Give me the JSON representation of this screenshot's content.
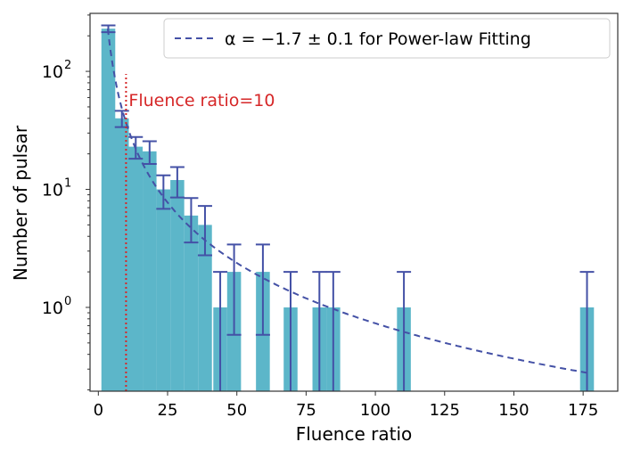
{
  "chart_data": {
    "type": "bar",
    "title": "",
    "xlabel": "Fluence ratio",
    "ylabel": "Number of pulsar",
    "xscale": "linear",
    "yscale": "log",
    "xlim": [
      -3,
      187.5
    ],
    "ylim": [
      0.195,
      310
    ],
    "xticks": [
      0,
      25,
      50,
      75,
      100,
      125,
      150,
      175
    ],
    "yticks": [
      {
        "value": 1,
        "base": "10",
        "exp": "0"
      },
      {
        "value": 10,
        "base": "10",
        "exp": "1"
      },
      {
        "value": 100,
        "base": "10",
        "exp": "2"
      }
    ],
    "bin_width": 5,
    "bins": [
      {
        "x": 3.6,
        "count": 230
      },
      {
        "x": 8.5,
        "count": 40
      },
      {
        "x": 13.5,
        "count": 23
      },
      {
        "x": 18.5,
        "count": 21
      },
      {
        "x": 23.5,
        "count": 10
      },
      {
        "x": 28.5,
        "count": 12
      },
      {
        "x": 33.5,
        "count": 6
      },
      {
        "x": 38.5,
        "count": 5
      },
      {
        "x": 44,
        "count": 1
      },
      {
        "x": 49,
        "count": 2
      },
      {
        "x": 59.4,
        "count": 2
      },
      {
        "x": 69.4,
        "count": 1
      },
      {
        "x": 79.8,
        "count": 1
      },
      {
        "x": 84.8,
        "count": 1
      },
      {
        "x": 110.3,
        "count": 1
      },
      {
        "x": 176.4,
        "count": 1
      }
    ],
    "error_bars": "sqrt(count)",
    "fit": {
      "type": "power-law",
      "alpha": -1.7,
      "alpha_err": 0.1,
      "amplitude": 1840,
      "x_range": [
        3.4,
        176.4
      ]
    },
    "vline": {
      "x": 10,
      "top_value": 95,
      "label": "Fluence ratio=10"
    },
    "legend": {
      "label": "α = −1.7 ± 0.1 for Power-law Fitting",
      "placement": "top-right"
    },
    "colors": {
      "bar": "#5cb6c9",
      "error": "#4451a6",
      "fit": "#4451a6",
      "vline": "#d62728",
      "axis": "#333333"
    }
  }
}
